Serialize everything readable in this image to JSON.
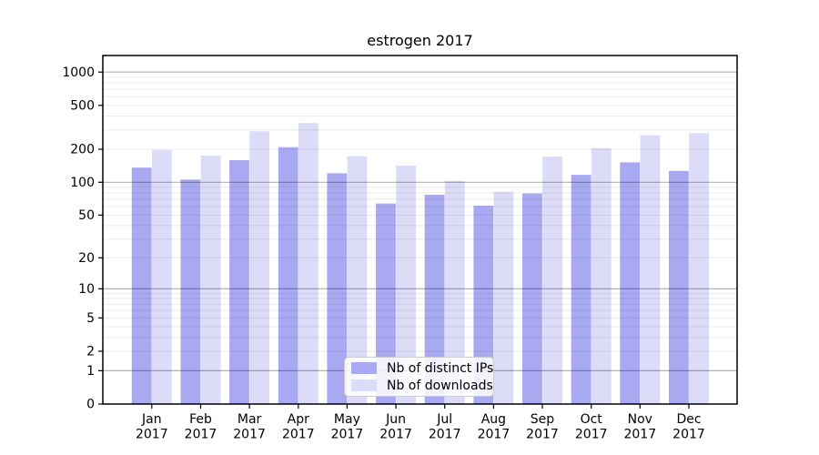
{
  "chart_data": {
    "type": "bar",
    "title": "estrogen 2017",
    "x_year": "2017",
    "categories": [
      "Jan",
      "Feb",
      "Mar",
      "Apr",
      "May",
      "Jun",
      "Jul",
      "Aug",
      "Sep",
      "Oct",
      "Nov",
      "Dec"
    ],
    "series": [
      {
        "name": "Nb of distinct IPs",
        "color": "#a9a9f2",
        "values": [
          136,
          106,
          159,
          209,
          121,
          64,
          77,
          61,
          79,
          117,
          152,
          127
        ]
      },
      {
        "name": "Nb of downloads",
        "color": "#dcdcf8",
        "values": [
          197,
          175,
          291,
          345,
          173,
          142,
          103,
          82,
          171,
          204,
          268,
          280
        ]
      }
    ],
    "y_ticks": [
      0,
      1,
      2,
      5,
      10,
      20,
      50,
      100,
      200,
      500,
      1000
    ],
    "y_scale": "log10(value+1)",
    "ylim": [
      0,
      1413
    ],
    "grid": {
      "major_values": [
        1,
        10,
        100,
        1000
      ],
      "minor_rule": "2-9 per decade"
    },
    "legend_position": "lower center",
    "colors": {
      "distinct_ips_bar": "#a9a9f2",
      "downloads_bar": "#dcdcf8",
      "grid_major": "#b3b3b3",
      "grid_minor": "#ebebeb",
      "axis": "#000000",
      "legend_border": "#cccccc"
    }
  }
}
